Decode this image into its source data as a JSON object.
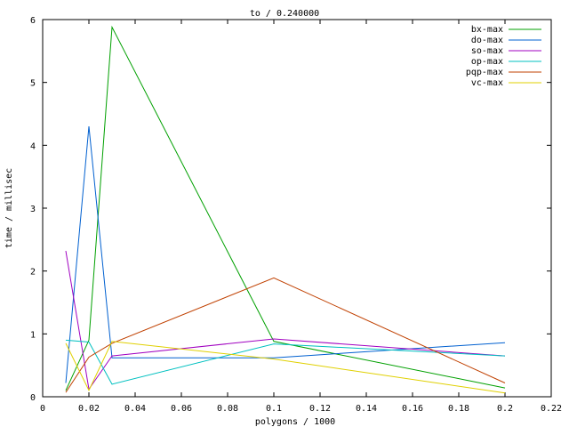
{
  "chart_data": {
    "type": "line",
    "title": "to / 0.240000",
    "xlabel": "polygons / 1000",
    "ylabel": "time / millisec",
    "xlim": [
      0,
      0.22
    ],
    "ylim": [
      0,
      6
    ],
    "xticks": [
      0,
      0.02,
      0.04,
      0.06,
      0.08,
      0.1,
      0.12,
      0.14,
      0.16,
      0.18,
      0.2,
      0.22
    ],
    "xtick_labels": [
      "0",
      "0.02",
      "0.04",
      "0.06",
      "0.08",
      "0.1",
      "0.12",
      "0.14",
      "0.16",
      "0.18",
      "0.2",
      "0.22"
    ],
    "yticks": [
      0,
      1,
      2,
      3,
      4,
      5,
      6
    ],
    "ytick_labels": [
      "0",
      "1",
      "2",
      "3",
      "4",
      "5",
      "6"
    ],
    "grid": false,
    "legend_position": "top-right",
    "series": [
      {
        "name": "bx-max",
        "color": "#00a000",
        "x": [
          0.01,
          0.02,
          0.03,
          0.1,
          0.2
        ],
        "y": [
          0.1,
          0.9,
          5.88,
          0.88,
          0.14
        ]
      },
      {
        "name": "do-max",
        "color": "#0060d0",
        "x": [
          0.01,
          0.02,
          0.03,
          0.1,
          0.2
        ],
        "y": [
          0.22,
          4.3,
          0.62,
          0.62,
          0.86
        ]
      },
      {
        "name": "so-max",
        "color": "#a000c0",
        "x": [
          0.01,
          0.02,
          0.03,
          0.1,
          0.2
        ],
        "y": [
          2.32,
          0.12,
          0.65,
          0.92,
          0.65
        ]
      },
      {
        "name": "op-max",
        "color": "#00c0c0",
        "x": [
          0.01,
          0.02,
          0.03,
          0.1,
          0.2
        ],
        "y": [
          0.9,
          0.87,
          0.2,
          0.84,
          0.65
        ]
      },
      {
        "name": "pqp-max",
        "color": "#c04000",
        "x": [
          0.01,
          0.02,
          0.03,
          0.1,
          0.2
        ],
        "y": [
          0.07,
          0.63,
          0.85,
          1.89,
          0.22
        ]
      },
      {
        "name": "vc-max",
        "color": "#e0d000",
        "x": [
          0.01,
          0.02,
          0.03,
          0.1,
          0.2
        ],
        "y": [
          0.85,
          0.1,
          0.88,
          0.6,
          0.06
        ]
      }
    ]
  }
}
